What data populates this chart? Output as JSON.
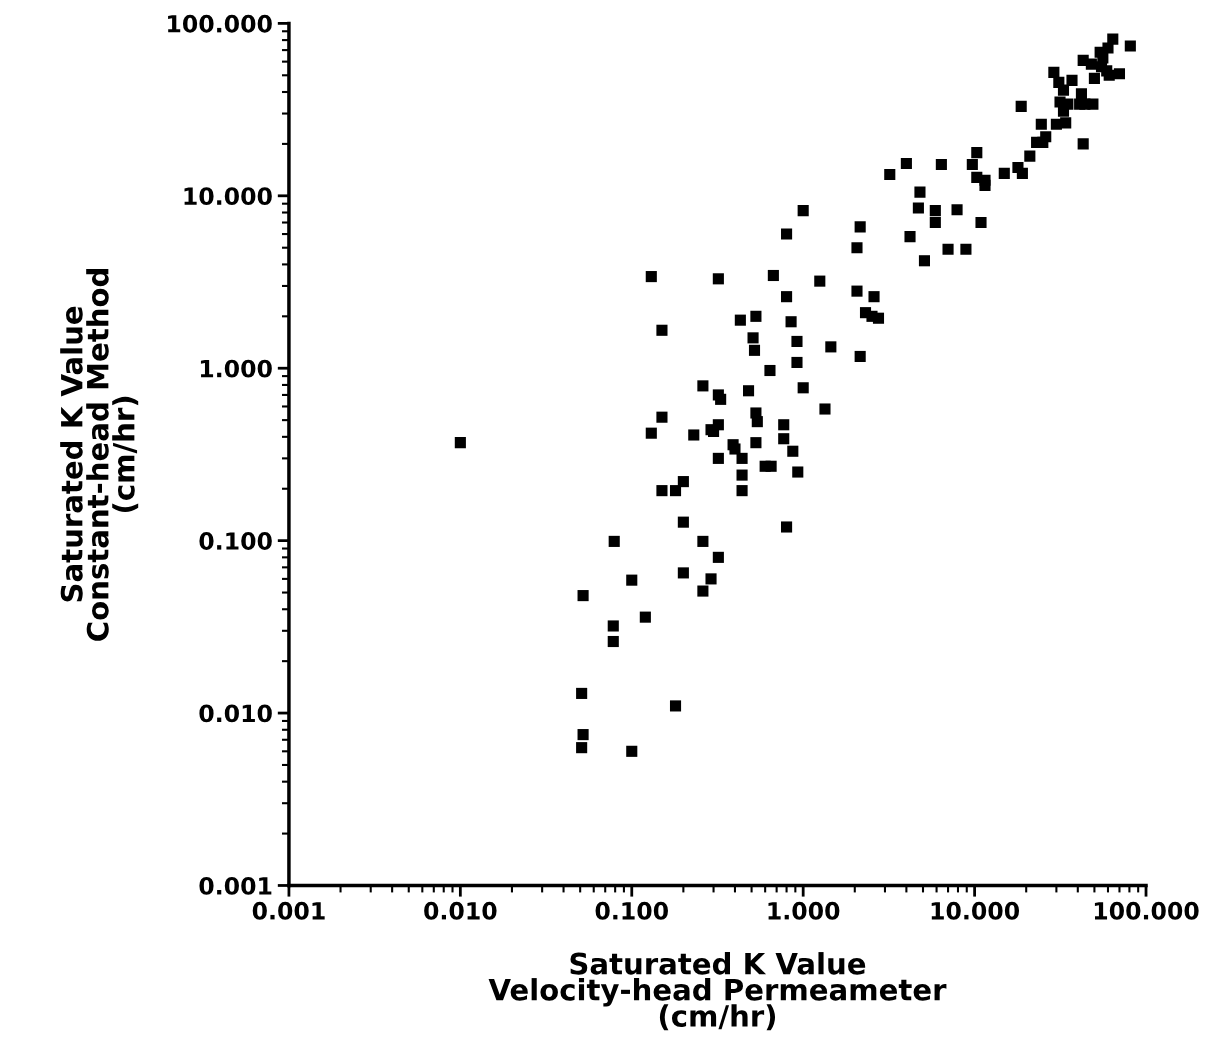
{
  "chart_data": {
    "type": "scatter",
    "xlabel": "Saturated K Value\nVelocity-head Permeameter\n(cm/hr)",
    "ylabel": "Saturated K Value\nConstant-head Method\n(cm/hr)",
    "log": "xy",
    "grid": false,
    "legend": false,
    "marker": "square",
    "xlim": [
      0.001,
      100
    ],
    "ylim": [
      0.001,
      100
    ],
    "xticks": [
      {
        "value": 0.001,
        "label": "0.001"
      },
      {
        "value": 0.01,
        "label": "0.010"
      },
      {
        "value": 0.1,
        "label": "0.100"
      },
      {
        "value": 1,
        "label": "1.000"
      },
      {
        "value": 10,
        "label": "10.000"
      },
      {
        "value": 100,
        "label": "100.000"
      }
    ],
    "yticks": [
      {
        "value": 0.001,
        "label": "0.001"
      },
      {
        "value": 0.01,
        "label": "0.010"
      },
      {
        "value": 0.1,
        "label": "0.100"
      },
      {
        "value": 1,
        "label": "1.000"
      },
      {
        "value": 10,
        "label": "10.000"
      },
      {
        "value": 100,
        "label": "100.000"
      }
    ],
    "series": [
      {
        "color": "#000000",
        "x": [
          0.01,
          0.052,
          0.051,
          0.052,
          0.051,
          0.079,
          0.078,
          0.078,
          0.1,
          0.1,
          0.12,
          0.13,
          0.13,
          0.15,
          0.15,
          0.15,
          0.18,
          0.18,
          0.2,
          0.2,
          0.2,
          0.23,
          0.26,
          0.26,
          0.26,
          0.29,
          0.29,
          0.3,
          0.32,
          0.32,
          0.32,
          0.33,
          0.32,
          0.32,
          0.39,
          0.43,
          0.4,
          0.44,
          0.44,
          0.44,
          0.48,
          0.51,
          0.53,
          0.52,
          0.53,
          0.54,
          0.53,
          0.6,
          0.64,
          0.65,
          0.67,
          0.8,
          0.8,
          0.77,
          0.77,
          0.8,
          0.85,
          0.87,
          0.92,
          0.92,
          0.93,
          1.0,
          1.0,
          1.25,
          1.34,
          1.45,
          2.06,
          2.15,
          2.06,
          2.15,
          2.31,
          2.59,
          2.75,
          2.52,
          3.2,
          4.0,
          4.2,
          4.8,
          4.7,
          5.1,
          5.9,
          5.9,
          6.4,
          7.0,
          7.9,
          8.9,
          9.7,
          10.3,
          10.3,
          10.9,
          11.5,
          11.5,
          14.9,
          17.9,
          18.7,
          19.0,
          21,
          23,
          24.5,
          25,
          26,
          29,
          30,
          31,
          31.5,
          33,
          33,
          34,
          35,
          37,
          41,
          42,
          43,
          43,
          44,
          48,
          49,
          50,
          54,
          55,
          56,
          59,
          61,
          60,
          64,
          70,
          81
        ],
        "values": [
          0.37,
          0.048,
          0.013,
          0.0075,
          0.0063,
          0.099,
          0.032,
          0.026,
          0.059,
          0.006,
          0.036,
          3.4,
          0.42,
          1.66,
          0.52,
          0.195,
          0.195,
          0.011,
          0.22,
          0.128,
          0.065,
          0.41,
          0.099,
          0.051,
          0.79,
          0.06,
          0.44,
          0.43,
          3.3,
          0.08,
          0.7,
          0.66,
          0.3,
          0.47,
          0.36,
          1.9,
          0.34,
          0.3,
          0.24,
          0.195,
          0.74,
          1.5,
          2.0,
          1.27,
          0.55,
          0.49,
          0.37,
          0.27,
          0.97,
          0.27,
          3.45,
          6.0,
          2.6,
          0.47,
          0.39,
          0.12,
          1.86,
          0.33,
          1.43,
          1.08,
          0.25,
          0.77,
          8.2,
          3.2,
          0.58,
          1.33,
          5.0,
          6.6,
          2.8,
          1.17,
          2.1,
          2.6,
          1.95,
          2.0,
          13.3,
          15.4,
          5.8,
          10.5,
          8.5,
          4.2,
          8.2,
          7.0,
          15.2,
          4.9,
          8.3,
          4.9,
          15.2,
          17.8,
          12.8,
          7.0,
          12.3,
          11.5,
          13.5,
          14.6,
          33,
          13.5,
          17.0,
          20.4,
          26,
          20.4,
          22,
          52,
          26,
          45.5,
          35,
          31,
          41,
          26.5,
          34,
          46.7,
          34,
          39,
          20,
          61,
          34,
          58,
          34,
          48,
          68,
          56,
          63,
          53,
          50,
          72,
          81,
          51,
          74
        ]
      }
    ]
  }
}
